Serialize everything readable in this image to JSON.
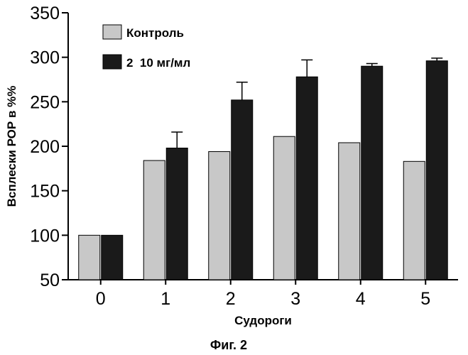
{
  "chart_data": {
    "type": "bar",
    "categories": [
      "0",
      "1",
      "2",
      "3",
      "4",
      "5"
    ],
    "series": [
      {
        "name": "Контроль",
        "values": [
          100,
          184,
          194,
          211,
          204,
          183
        ],
        "color": "#c8c8c8"
      },
      {
        "name": "2  10 мг/мл",
        "values": [
          100,
          198,
          252,
          278,
          290,
          296
        ],
        "errors": [
          0,
          18,
          20,
          19,
          3,
          3
        ],
        "color": "#1a1a1a"
      }
    ],
    "xlabel": "Судороги",
    "ylabel": "Всплески РОР в %%",
    "ylim": [
      50,
      350
    ],
    "yticks": [
      50,
      100,
      150,
      200,
      250,
      300,
      350
    ],
    "legend_position": "top-left",
    "grid": false
  },
  "caption": "Фиг. 2"
}
